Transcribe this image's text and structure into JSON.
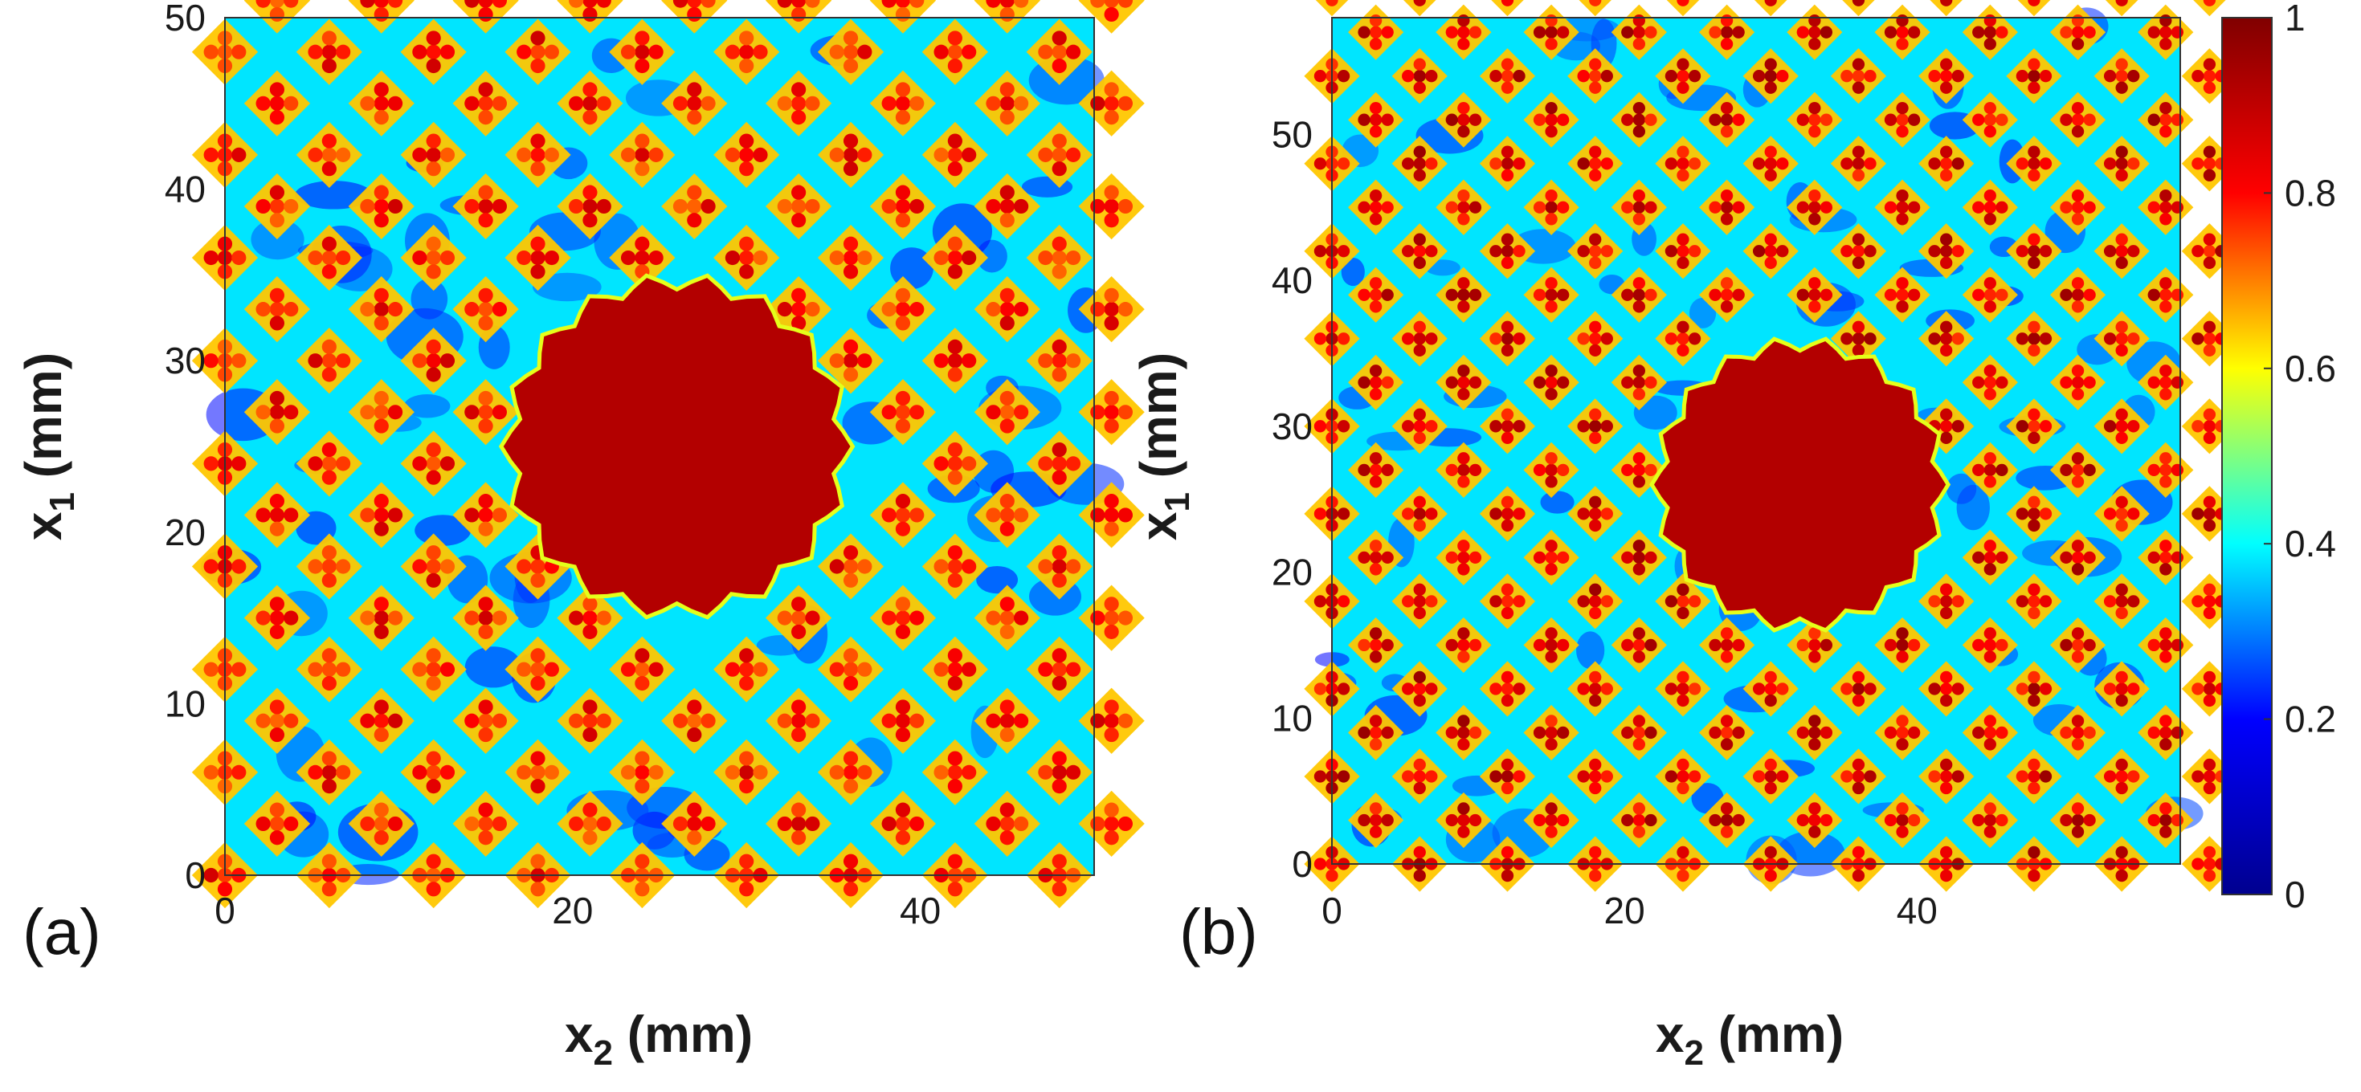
{
  "chart_data": [
    {
      "type": "heatmap",
      "panel_label": "(a)",
      "xlabel": "x",
      "xlabel_sub": "2",
      "xlabel_unit": " (mm)",
      "ylabel": "x",
      "ylabel_sub": "1",
      "ylabel_unit": " (mm)",
      "xlim": [
        0,
        50
      ],
      "ylim": [
        0,
        50
      ],
      "xticks": [
        "0",
        "20",
        "40"
      ],
      "xtick_values": [
        0,
        20,
        40
      ],
      "yticks": [
        "0",
        "10",
        "20",
        "30",
        "40",
        "50"
      ],
      "ytick_values": [
        0,
        10,
        20,
        30,
        40,
        50
      ],
      "defect": {
        "center_x2": 26,
        "center_x1": 25,
        "radius": 9.5,
        "value": 1.0
      },
      "lattice_spacing": 6,
      "lattice_value": 0.85,
      "background_value": 0.35
    },
    {
      "type": "heatmap",
      "panel_label": "(b)",
      "xlabel": "x",
      "xlabel_sub": "2",
      "xlabel_unit": " (mm)",
      "ylabel": "x",
      "ylabel_sub": "1",
      "ylabel_unit": " (mm)",
      "xlim": [
        0,
        58
      ],
      "ylim": [
        0,
        58
      ],
      "xticks": [
        "0",
        "20",
        "40"
      ],
      "xtick_values": [
        0,
        20,
        40
      ],
      "yticks": [
        "0",
        "10",
        "20",
        "30",
        "40",
        "50"
      ],
      "ytick_values": [
        0,
        10,
        20,
        30,
        40,
        50
      ],
      "defect": {
        "center_x2": 32,
        "center_x1": 26,
        "radius": 9.5,
        "value": 1.0
      },
      "lattice_spacing": 6,
      "lattice_value": 0.9,
      "background_value": 0.35
    }
  ],
  "colorbar": {
    "range": [
      0,
      1
    ],
    "ticks": [
      "0",
      "0.2",
      "0.4",
      "0.6",
      "0.8",
      "1"
    ],
    "tick_values": [
      0,
      0.2,
      0.4,
      0.6,
      0.8,
      1
    ],
    "colormap": "jet",
    "stops": [
      "#00008f",
      "#0000ff",
      "#00ffff",
      "#ffff00",
      "#ff0000",
      "#800000"
    ]
  }
}
